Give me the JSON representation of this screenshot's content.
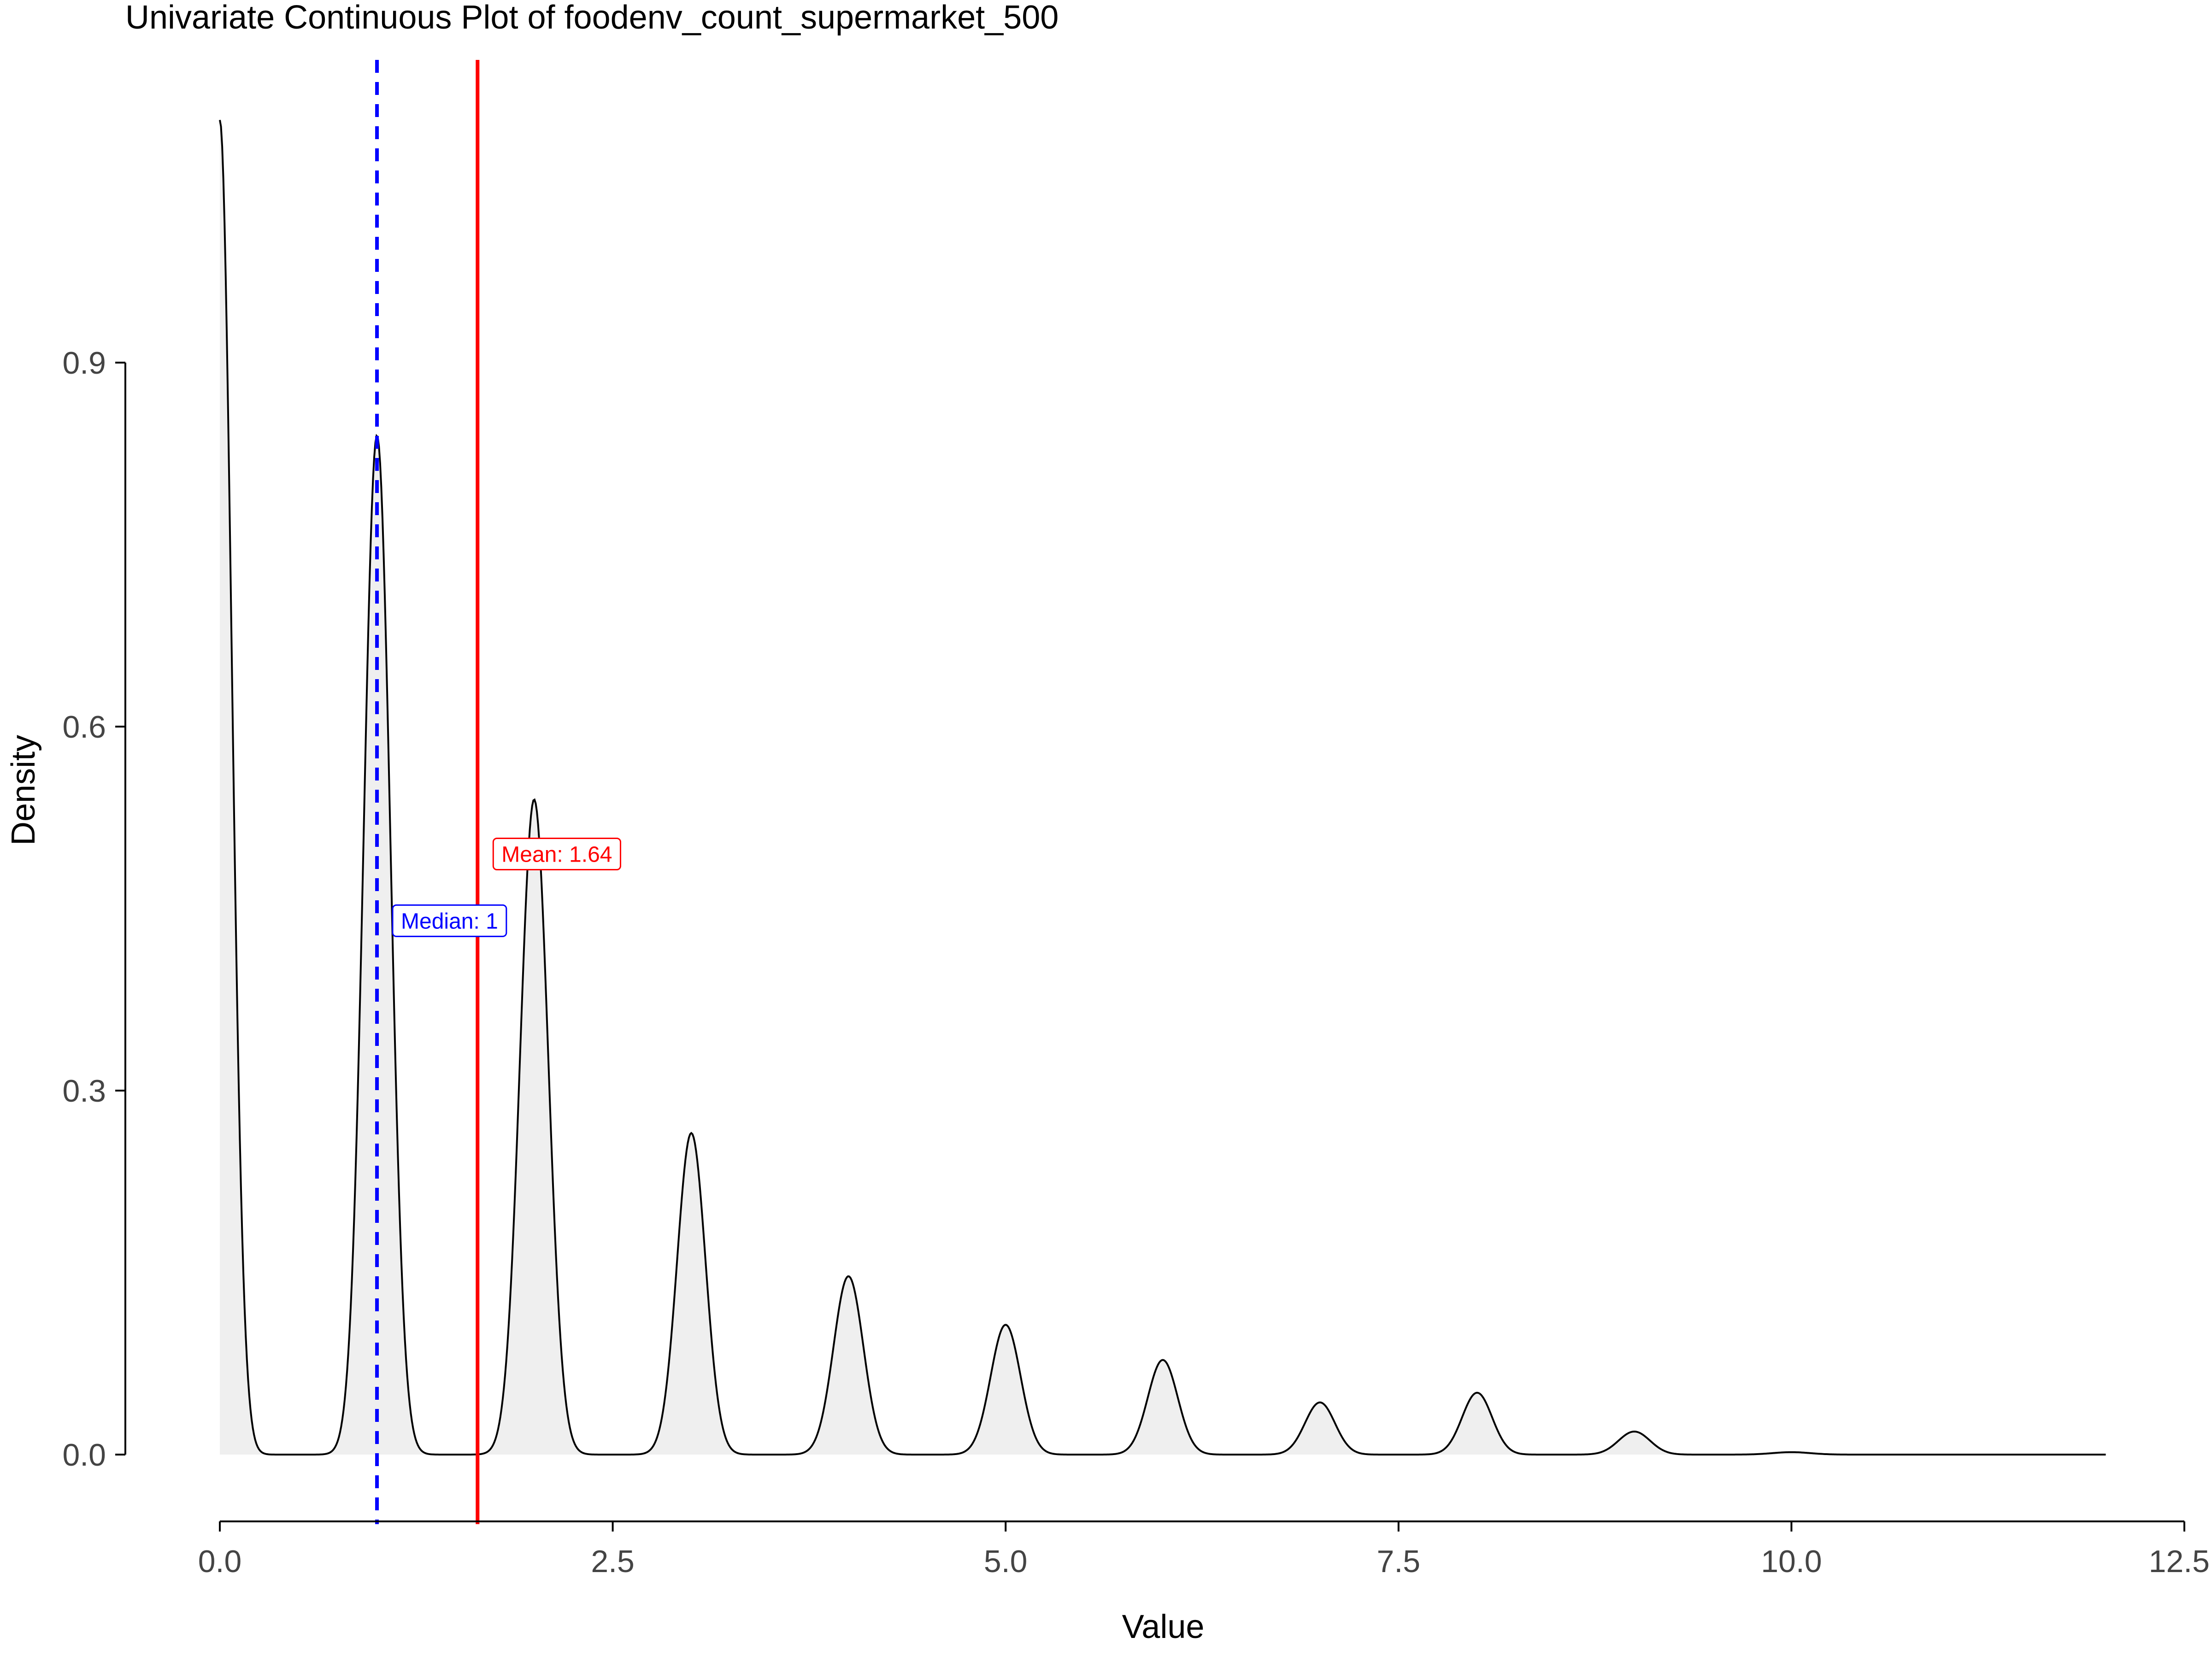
{
  "chart_data": {
    "type": "area",
    "title": "Univariate Continuous Plot of foodenv_count_supermarket_500",
    "xlabel": "Value",
    "ylabel": "Density",
    "xlim": [
      0,
      12.5
    ],
    "ylim": [
      -0.055,
      1.15
    ],
    "x_ticks": [
      0,
      2.5,
      5,
      7.5,
      10,
      12.5
    ],
    "x_tick_labels": [
      "0.0",
      "2.5",
      "5.0",
      "7.5",
      "10.0",
      "12.5"
    ],
    "y_ticks": [
      0,
      0.3,
      0.6,
      0.9
    ],
    "y_tick_labels": [
      "0.0",
      "0.3",
      "0.6",
      "0.9"
    ],
    "grid": false,
    "colors": {
      "density_line": "#000000",
      "density_fill": "#efefef",
      "median": "#0000ff",
      "mean": "#ff0000",
      "axis": "#000000",
      "tick_label": "#444444"
    },
    "density_peaks": [
      {
        "x": 0,
        "y": 1.1,
        "sd": 0.075
      },
      {
        "x": 1,
        "y": 0.84,
        "sd": 0.085
      },
      {
        "x": 2,
        "y": 0.54,
        "sd": 0.09
      },
      {
        "x": 3,
        "y": 0.265,
        "sd": 0.09
      },
      {
        "x": 4,
        "y": 0.147,
        "sd": 0.095
      },
      {
        "x": 5,
        "y": 0.107,
        "sd": 0.095
      },
      {
        "x": 6,
        "y": 0.078,
        "sd": 0.095
      },
      {
        "x": 7,
        "y": 0.043,
        "sd": 0.095
      },
      {
        "x": 8,
        "y": 0.051,
        "sd": 0.095
      },
      {
        "x": 9,
        "y": 0.019,
        "sd": 0.1
      },
      {
        "x": 10,
        "y": 0.002,
        "sd": 0.12
      }
    ],
    "x_range": [
      0,
      12
    ],
    "median": {
      "value": 1,
      "label": "Median: 1",
      "label_y": 0.44
    },
    "mean": {
      "value": 1.64,
      "label": "Mean: 1.64",
      "label_y": 0.495
    }
  }
}
